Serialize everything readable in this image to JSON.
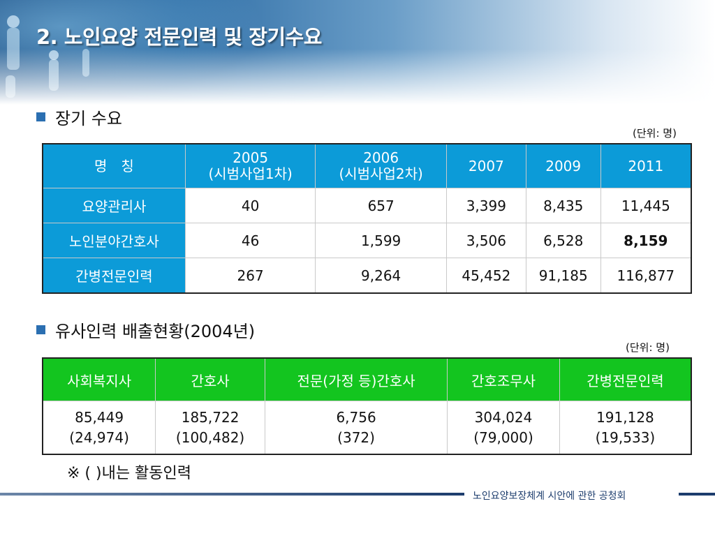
{
  "title": "2. 노인요양 전문인력 및 장기수요",
  "section1": {
    "heading": "장기 수요",
    "unit": "(단위: 명)",
    "headers": [
      "명　칭",
      "2005\n(시범사업1차)",
      "2006\n(시범사업2차)",
      "2007",
      "2009",
      "2011"
    ],
    "rows": [
      {
        "label": "요양관리사",
        "values": [
          "40",
          "657",
          "3,399",
          "8,435",
          "11,445"
        ]
      },
      {
        "label": "노인분야간호사",
        "values": [
          "46",
          "1,599",
          "3,506",
          "6,528",
          "8,159"
        ]
      },
      {
        "label": "간병전문인력",
        "values": [
          "267",
          "9,264",
          "45,452",
          "91,185",
          "116,877"
        ]
      }
    ]
  },
  "section2": {
    "heading": "유사인력 배출현황(2004년)",
    "unit": "(단위: 명)",
    "headers": [
      "사회복지사",
      "간호사",
      "전문(가정 등)간호사",
      "간호조무사",
      "간병전문인력"
    ],
    "values": [
      {
        "main": "85,449",
        "sub": "(24,974)"
      },
      {
        "main": "185,722",
        "sub": "(100,482)"
      },
      {
        "main": "6,756",
        "sub": "(372)"
      },
      {
        "main": "304,024",
        "sub": "(79,000)"
      },
      {
        "main": "191,128",
        "sub": "(19,533)"
      }
    ]
  },
  "note": "※ (  )내는 활동인력",
  "footer": "노인요양보장체계 시안에 관한 공청회",
  "colors": {
    "header_blue": "#0c9bd8",
    "header_green": "#13c51f",
    "bullet": "#2b6fb1",
    "footer": "#1d3d6d"
  }
}
